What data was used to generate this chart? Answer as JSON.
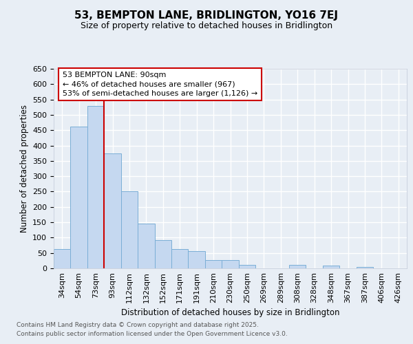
{
  "title": "53, BEMPTON LANE, BRIDLINGTON, YO16 7EJ",
  "subtitle": "Size of property relative to detached houses in Bridlington",
  "xlabel": "Distribution of detached houses by size in Bridlington",
  "ylabel": "Number of detached properties",
  "categories": [
    "34sqm",
    "54sqm",
    "73sqm",
    "93sqm",
    "112sqm",
    "132sqm",
    "152sqm",
    "171sqm",
    "191sqm",
    "210sqm",
    "230sqm",
    "250sqm",
    "269sqm",
    "289sqm",
    "308sqm",
    "328sqm",
    "348sqm",
    "367sqm",
    "387sqm",
    "406sqm",
    "426sqm"
  ],
  "values": [
    62,
    462,
    530,
    375,
    250,
    145,
    93,
    62,
    55,
    28,
    28,
    12,
    0,
    0,
    12,
    0,
    8,
    0,
    5,
    0,
    0
  ],
  "bar_color": "#c5d8f0",
  "bar_edge_color": "#7aaed6",
  "ylim": [
    0,
    650
  ],
  "yticks": [
    0,
    50,
    100,
    150,
    200,
    250,
    300,
    350,
    400,
    450,
    500,
    550,
    600,
    650
  ],
  "property_label": "53 BEMPTON LANE: 90sqm",
  "annotation_line1": "← 46% of detached houses are smaller (967)",
  "annotation_line2": "53% of semi-detached houses are larger (1,126) →",
  "vline_bin_index": 2,
  "vline_color": "#cc0000",
  "annotation_box_edgecolor": "#cc0000",
  "background_color": "#e8eef5",
  "grid_color": "#ffffff",
  "footer_line1": "Contains HM Land Registry data © Crown copyright and database right 2025.",
  "footer_line2": "Contains public sector information licensed under the Open Government Licence v3.0.",
  "title_fontsize": 11,
  "subtitle_fontsize": 9,
  "axis_label_fontsize": 8.5,
  "tick_fontsize": 8,
  "annotation_fontsize": 8,
  "footer_fontsize": 6.5
}
